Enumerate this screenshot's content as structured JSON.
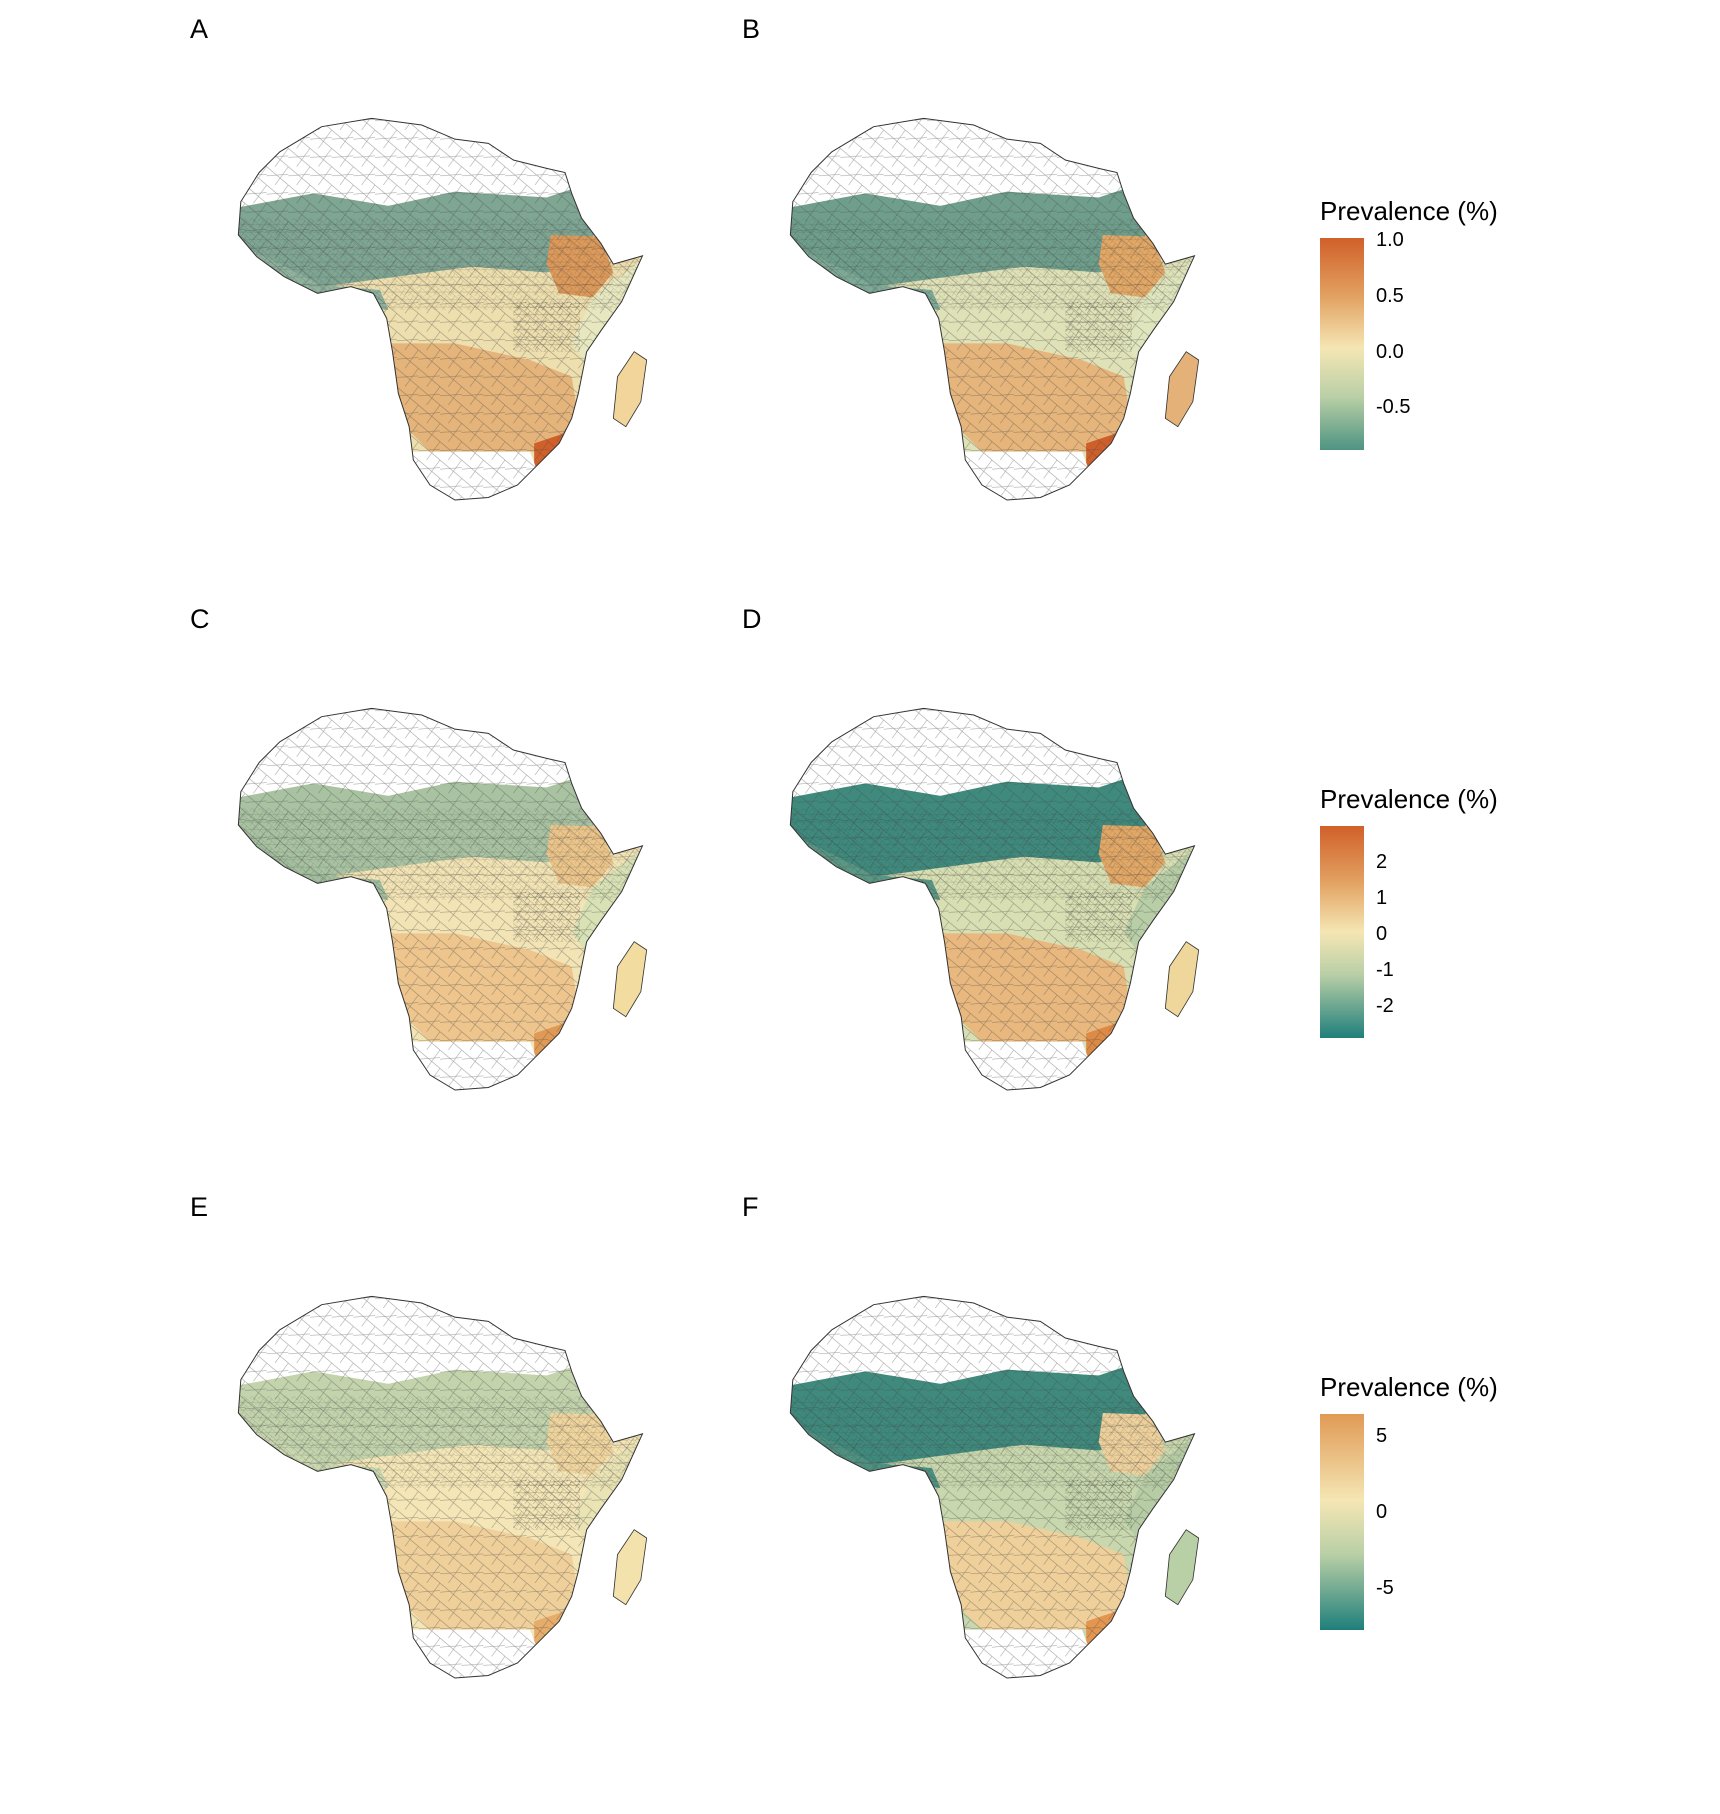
{
  "panels": [
    {
      "letter": "A"
    },
    {
      "letter": "B"
    },
    {
      "letter": "C"
    },
    {
      "letter": "D"
    },
    {
      "letter": "E"
    },
    {
      "letter": "F"
    }
  ],
  "legends": [
    {
      "title": "Prevalence (%)",
      "min": -0.9,
      "max": 1.0,
      "ticks": [
        {
          "value": 1.0,
          "label": "1.0"
        },
        {
          "value": 0.5,
          "label": "0.5"
        },
        {
          "value": 0.0,
          "label": "0.0"
        },
        {
          "value": -0.5,
          "label": "-0.5"
        }
      ],
      "colors": [
        "#d1602a",
        "#e2a060",
        "#f5e6b4",
        "#b9cfa6",
        "#4e9482"
      ]
    },
    {
      "title": "Prevalence (%)",
      "min": -2.8,
      "max": 2.8,
      "ticks": [
        {
          "value": 2,
          "label": "2"
        },
        {
          "value": 1,
          "label": "1"
        },
        {
          "value": 0,
          "label": "0"
        },
        {
          "value": -1,
          "label": "-1"
        },
        {
          "value": -2,
          "label": "-2"
        }
      ],
      "colors": [
        "#d1602a",
        "#e2a060",
        "#f5e6b4",
        "#b9cfa6",
        "#1f7f7b"
      ]
    },
    {
      "title": "Prevalence (%)",
      "min": -8.5,
      "max": 6,
      "ticks": [
        {
          "value": 5,
          "label": "5"
        },
        {
          "value": 0,
          "label": "0"
        },
        {
          "value": -5,
          "label": "-5"
        }
      ],
      "colors": [
        "#e09a55",
        "#f5e6b4",
        "#b9cfa6",
        "#1f7f7b"
      ]
    }
  ]
}
